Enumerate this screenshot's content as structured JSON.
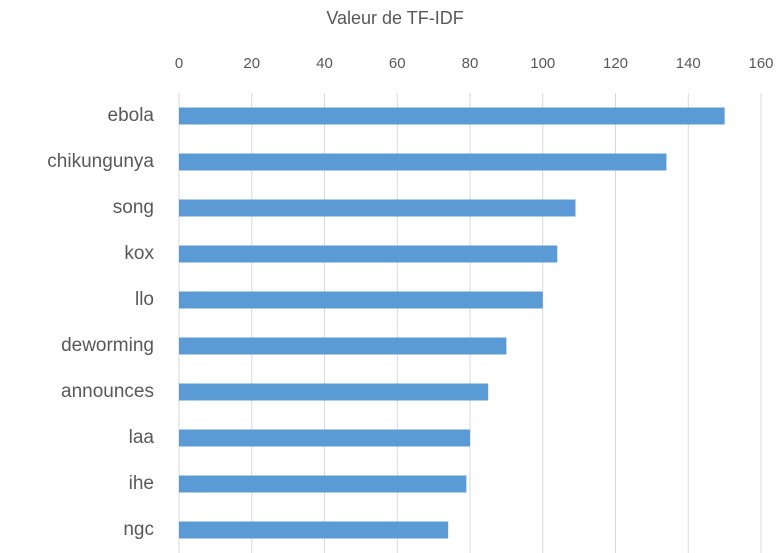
{
  "chart_data": {
    "type": "bar",
    "orientation": "horizontal",
    "x_label": "Valeur de TF-IDF",
    "categories": [
      "ebola",
      "chikungunya",
      "song",
      "kox",
      "llo",
      "deworming",
      "announces",
      "laa",
      "ihe",
      "ngc"
    ],
    "values": [
      150,
      134,
      109,
      104,
      100,
      90,
      85,
      80,
      79,
      74
    ],
    "color": "#5b9bd5",
    "xlim": [
      0,
      160
    ],
    "xticks": [
      0,
      20,
      40,
      60,
      80,
      100,
      120,
      140,
      160
    ],
    "grid": true
  }
}
